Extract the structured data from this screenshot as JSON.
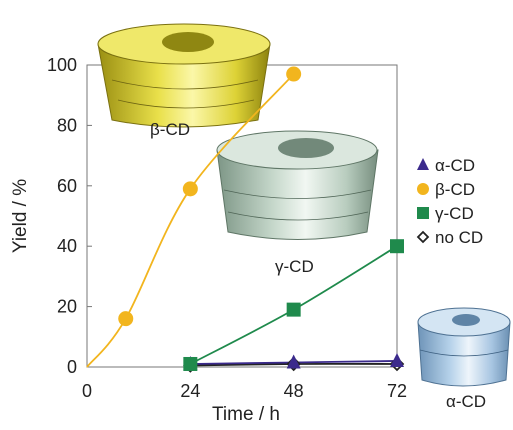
{
  "chart_data": {
    "type": "line",
    "xlabel": "Time / h",
    "ylabel": "Yield / %",
    "xlim": [
      0,
      72
    ],
    "ylim": [
      0,
      100
    ],
    "x_ticks": [
      0,
      24,
      48,
      72
    ],
    "y_ticks": [
      0,
      20,
      40,
      60,
      80,
      100
    ],
    "grid": false,
    "legend_position": "right",
    "series": [
      {
        "name": "α-CD",
        "color": "#3b2a8c",
        "marker": "triangle",
        "points": [
          [
            24,
            1
          ],
          [
            48,
            1.5
          ],
          [
            72,
            2
          ]
        ]
      },
      {
        "name": "β-CD",
        "color": "#f2b51e",
        "marker": "circle",
        "points": [
          [
            0,
            0
          ],
          [
            9,
            16
          ],
          [
            24,
            59
          ],
          [
            48,
            97
          ]
        ]
      },
      {
        "name": "γ-CD",
        "color": "#1f8a4c",
        "marker": "square",
        "points": [
          [
            24,
            1
          ],
          [
            48,
            19
          ],
          [
            72,
            40
          ]
        ]
      },
      {
        "name": "no CD",
        "color": "#222222",
        "marker": "diamond-open",
        "points": [
          [
            24,
            0.5
          ],
          [
            48,
            1
          ],
          [
            72,
            1
          ]
        ]
      }
    ],
    "annotations": [
      {
        "text": "β-CD",
        "color": "#d8c92a",
        "icon": "cyclodextrin-torus"
      },
      {
        "text": "γ-CD",
        "color": "#b7cbbd",
        "icon": "cyclodextrin-torus"
      },
      {
        "text": "α-CD",
        "color": "#a9c8e4",
        "icon": "cyclodextrin-torus"
      }
    ]
  }
}
